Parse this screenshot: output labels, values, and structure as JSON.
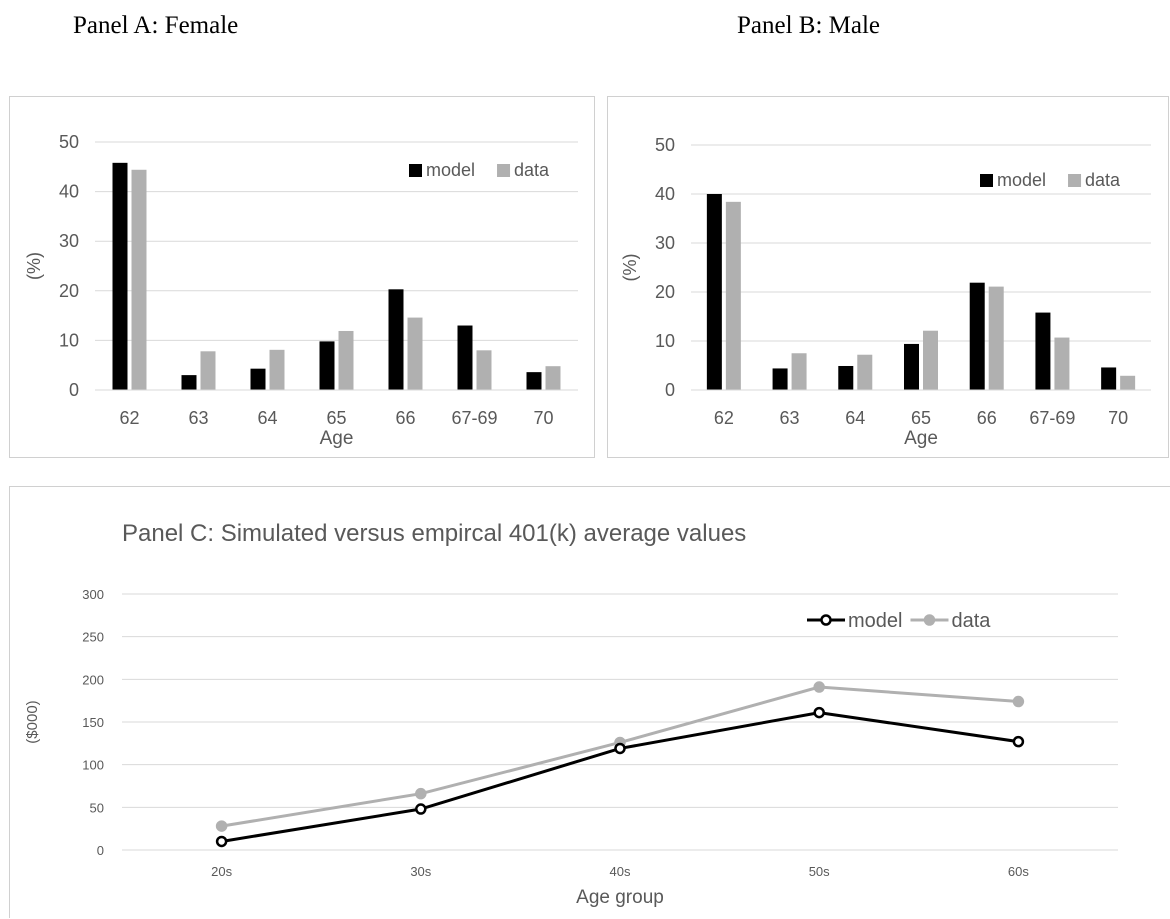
{
  "headings": {
    "panel_a": "Panel A: Female",
    "panel_b": "Panel B: Male"
  },
  "colors": {
    "model": "#000000",
    "data": "#b0b0b0",
    "grid": "#d9d9d9",
    "axis_text": "#595959",
    "box_border": "#d0d0d0"
  },
  "chart_data": [
    {
      "type": "bar",
      "title": "",
      "xlabel": "Age",
      "ylabel": "(%)",
      "ylim": [
        0,
        50
      ],
      "yticks": [
        0,
        10,
        20,
        30,
        40,
        50
      ],
      "categories": [
        "62",
        "63",
        "64",
        "65",
        "66",
        "67-69",
        "70"
      ],
      "series": [
        {
          "name": "model",
          "values": [
            45.8,
            3.0,
            4.3,
            9.8,
            20.3,
            13.0,
            3.6
          ]
        },
        {
          "name": "data",
          "values": [
            44.4,
            7.8,
            8.1,
            11.9,
            14.6,
            8.0,
            4.8
          ]
        }
      ],
      "grid": true,
      "legend": "top-right"
    },
    {
      "type": "bar",
      "title": "",
      "xlabel": "Age",
      "ylabel": "(%)",
      "ylim": [
        0,
        50
      ],
      "yticks": [
        0,
        10,
        20,
        30,
        40,
        50
      ],
      "categories": [
        "62",
        "63",
        "64",
        "65",
        "66",
        "67-69",
        "70"
      ],
      "series": [
        {
          "name": "model",
          "values": [
            40.0,
            4.4,
            4.9,
            9.4,
            21.9,
            15.8,
            4.6
          ]
        },
        {
          "name": "data",
          "values": [
            38.4,
            7.5,
            7.2,
            12.1,
            21.1,
            10.7,
            2.9
          ]
        }
      ],
      "grid": true,
      "legend": "top-right"
    },
    {
      "type": "line",
      "title": "Panel C: Simulated versus empircal 401(k) average values",
      "xlabel": "Age group",
      "ylabel": "($000)",
      "ylim": [
        0,
        300
      ],
      "yticks": [
        0,
        50,
        100,
        150,
        200,
        250,
        300
      ],
      "categories": [
        "20s",
        "30s",
        "40s",
        "50s",
        "60s"
      ],
      "series": [
        {
          "name": "model",
          "values": [
            10,
            48,
            119,
            161,
            127
          ]
        },
        {
          "name": "data",
          "values": [
            28,
            66,
            126,
            191,
            174
          ]
        }
      ],
      "grid": true,
      "legend": "top-right"
    }
  ]
}
